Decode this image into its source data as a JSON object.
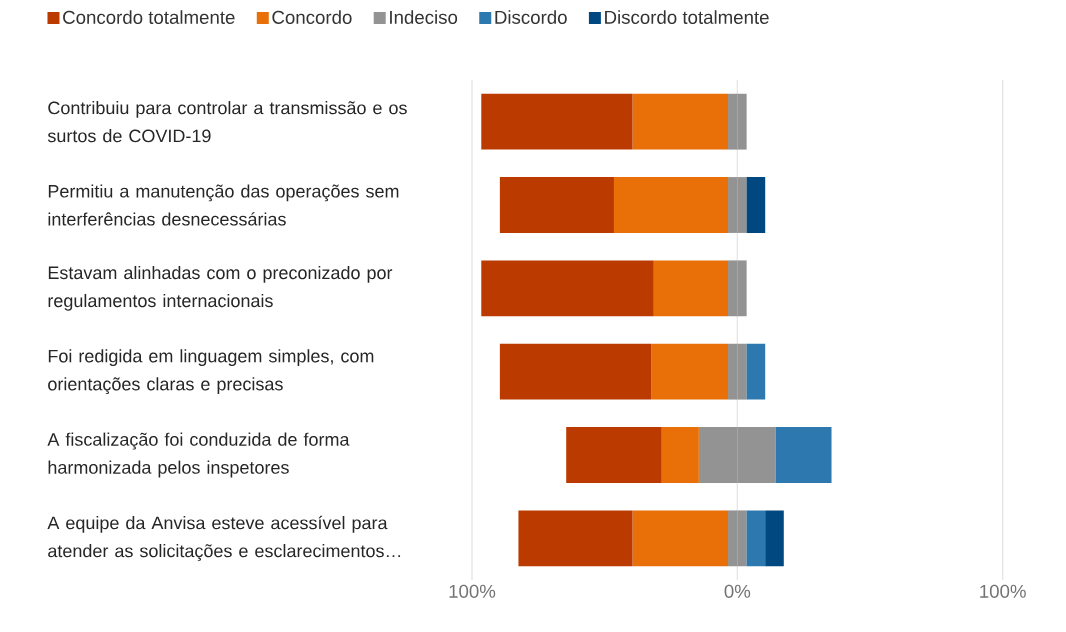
{
  "chart_data": {
    "type": "bar",
    "orientation": "horizontal",
    "stacked": true,
    "categories": [
      "Contribuiu para controlar a transmissão e os surtos de COVID-19",
      "Permitiu a manutenção das operações sem interferências desnecessárias",
      "Estavam alinhadas com o preconizado por regulamentos internacionais",
      "Foi redigida em linguagem simples, com orientações claras e precisas",
      "A fiscalização foi conduzida de forma harmonizada pelos inspetores",
      "A equipe da Anvisa esteve acessível para atender as solicitações e esclarecimentos…"
    ],
    "series": [
      {
        "name": "Indeciso",
        "color": "#939393",
        "values": [
          -3.5,
          -3.5,
          -3.5,
          -3.5,
          -14.5,
          -3.5
        ]
      },
      {
        "color": "#939393",
        "values": [
          3.5,
          3.5,
          3.5,
          3.5,
          14.5,
          3.5
        ]
      },
      {
        "name": "Concordo",
        "color": "#e97008",
        "values": [
          -36,
          -43,
          -28,
          -29,
          -14,
          -36
        ]
      },
      {
        "name": "Discordo",
        "color": "#2e78b0",
        "values": [
          0,
          0,
          0,
          7,
          21,
          7
        ]
      },
      {
        "name": "Concordo totalmente",
        "color": "#bb3a00",
        "values": [
          -57,
          -43,
          -65,
          -57,
          -36,
          -43
        ]
      },
      {
        "name": "Discordo totalmente",
        "color": "#00487f",
        "values": [
          0,
          7,
          0,
          0,
          0,
          7
        ]
      }
    ],
    "xlim": [
      -100,
      100
    ],
    "xticks": [
      {
        "value": -100,
        "label": "100%"
      },
      {
        "value": 0,
        "label": "0%"
      },
      {
        "value": 100,
        "label": "100%"
      }
    ],
    "grid": "x",
    "legend": "top"
  }
}
